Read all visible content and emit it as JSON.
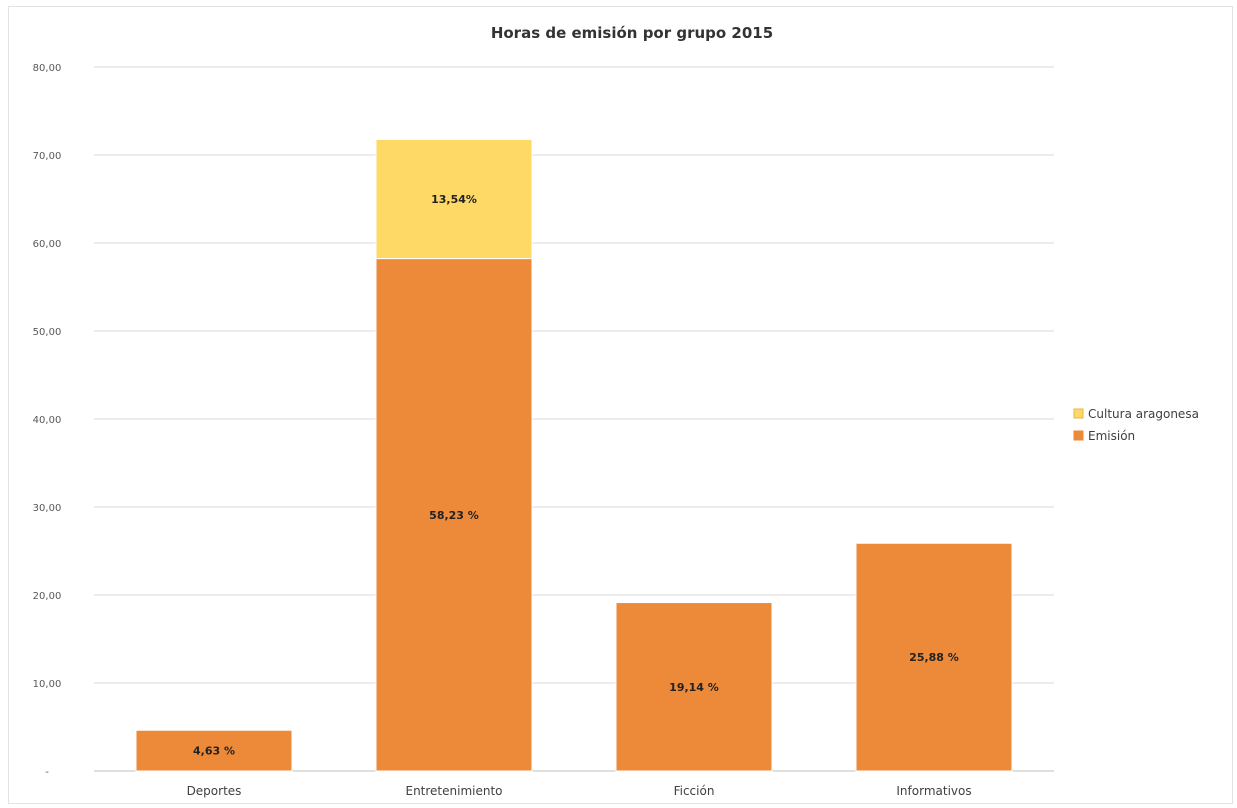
{
  "chart_data": {
    "type": "bar",
    "stacked": true,
    "title": "Horas de emisión por grupo 2015",
    "xlabel": "",
    "ylabel": "",
    "categories": [
      "Deportes",
      "Entretenimiento",
      "Ficción",
      "Informativos"
    ],
    "series": [
      {
        "name": "Emisión",
        "color": "#ED8A3A",
        "values": [
          4.63,
          58.23,
          19.14,
          25.88
        ],
        "labels": [
          "4,63 %",
          "58,23 %",
          "19,14 %",
          "25,88 %"
        ]
      },
      {
        "name": "Cultura aragonesa",
        "color": "#FFD966",
        "values": [
          0,
          13.54,
          0,
          0
        ],
        "labels": [
          "",
          "13,54%",
          "",
          ""
        ]
      }
    ],
    "ylim": [
      0,
      80
    ],
    "yticks": [
      "-",
      "10,00",
      "20,00",
      "30,00",
      "40,00",
      "50,00",
      "60,00",
      "70,00",
      "80,00"
    ],
    "grid": true,
    "legend_position": "right"
  }
}
